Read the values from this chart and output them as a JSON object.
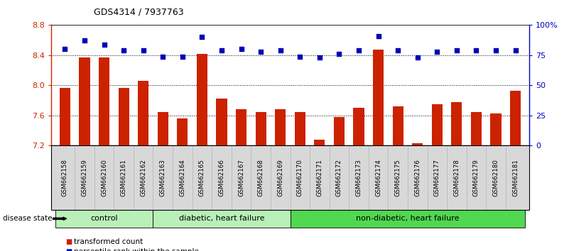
{
  "title": "GDS4314 / 7937763",
  "samples": [
    "GSM662158",
    "GSM662159",
    "GSM662160",
    "GSM662161",
    "GSM662162",
    "GSM662163",
    "GSM662164",
    "GSM662165",
    "GSM662166",
    "GSM662167",
    "GSM662168",
    "GSM662169",
    "GSM662170",
    "GSM662171",
    "GSM662172",
    "GSM662173",
    "GSM662174",
    "GSM662175",
    "GSM662176",
    "GSM662177",
    "GSM662178",
    "GSM662179",
    "GSM662180",
    "GSM662181"
  ],
  "bar_values": [
    7.97,
    8.37,
    8.37,
    7.97,
    8.06,
    7.65,
    7.56,
    8.42,
    7.82,
    7.68,
    7.65,
    7.68,
    7.65,
    7.28,
    7.58,
    7.7,
    8.47,
    7.72,
    7.23,
    7.75,
    7.78,
    7.65,
    7.63,
    7.93
  ],
  "percentile_values": [
    80,
    87,
    84,
    79,
    79,
    74,
    74,
    90,
    79,
    80,
    78,
    79,
    74,
    73,
    76,
    79,
    91,
    79,
    73,
    78,
    79,
    79,
    79,
    79
  ],
  "group_defs": [
    {
      "label": "control",
      "start": 0,
      "end": 4,
      "color": "#b8f0b8"
    },
    {
      "label": "diabetic, heart failure",
      "start": 5,
      "end": 11,
      "color": "#b8f0b8"
    },
    {
      "label": "non-diabetic, heart failure",
      "start": 12,
      "end": 23,
      "color": "#50d850"
    }
  ],
  "ylim_left": [
    7.2,
    8.8
  ],
  "ylim_right": [
    0,
    100
  ],
  "yticks_left": [
    7.2,
    7.6,
    8.0,
    8.4,
    8.8
  ],
  "yticks_right": [
    0,
    25,
    50,
    75,
    100
  ],
  "ytick_labels_right": [
    "0",
    "25",
    "50",
    "75",
    "100%"
  ],
  "bar_color": "#CC2200",
  "dot_color": "#0000BB",
  "grid_values": [
    7.6,
    8.0,
    8.4
  ],
  "bg_color": "#ffffff",
  "xtick_bg_color": "#d8d8d8",
  "xlim": [
    -0.7,
    23.7
  ]
}
